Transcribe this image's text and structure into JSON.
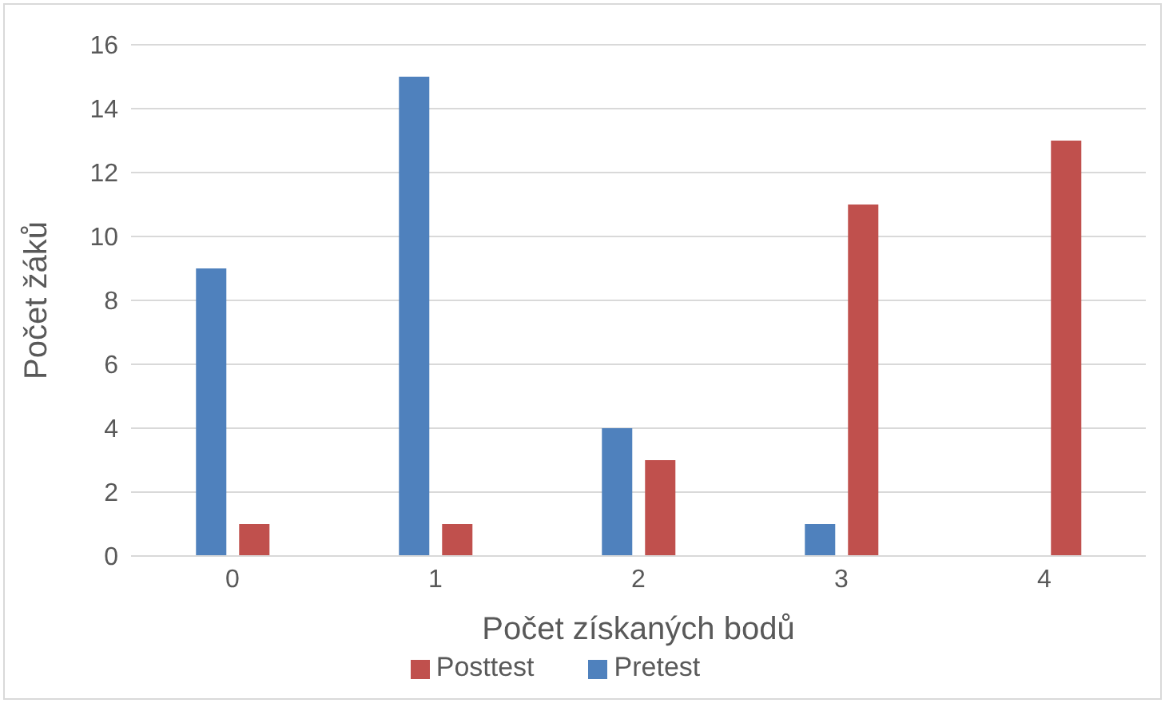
{
  "chart_data": {
    "type": "bar",
    "xlabel": "Počet získaných bodů",
    "ylabel": "Počet žáků",
    "categories": [
      "0",
      "1",
      "2",
      "3",
      "4"
    ],
    "series": [
      {
        "name": "Pretest",
        "color": "#4f81bd",
        "values": [
          9,
          15,
          4,
          1,
          0
        ]
      },
      {
        "name": "Posttest",
        "color": "#c0504d",
        "values": [
          1,
          1,
          3,
          11,
          13
        ]
      }
    ],
    "ylim": [
      0,
      16
    ],
    "yticks": [
      0,
      2,
      4,
      6,
      8,
      10,
      12,
      14,
      16
    ],
    "grid": "y",
    "legend": "bottom"
  }
}
